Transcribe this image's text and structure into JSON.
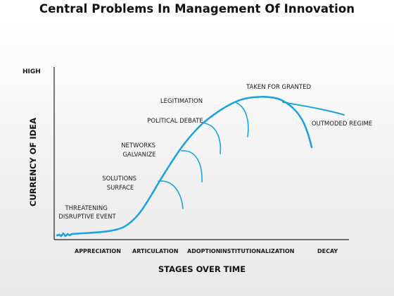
{
  "title": "Central Problems In Management Of Innovation",
  "axis": {
    "y_title": "CURRENCY OF IDEA",
    "y_high": "HIGH",
    "x_title": "STAGES OVER TIME"
  },
  "stages": [
    "APPRECIATION",
    "ARTICULATION",
    "ADOPTION",
    "INSTITUTIONALIZATION",
    "DECAY"
  ],
  "labels": {
    "threatening": [
      "THREATENING",
      "DISRUPTIVE EVENT"
    ],
    "solutions": [
      "SOLUTIONS",
      "SURFACE"
    ],
    "networks": [
      "NETWORKS",
      "GALVANIZE"
    ],
    "political": "POLITICAL DEBATE",
    "legitimation": "LEGITIMATION",
    "taken": "TAKEN FOR GRANTED",
    "outmoded": "OUTMODED REGIME"
  },
  "colors": {
    "curve": "#1ca3dd",
    "axis": "#222222"
  }
}
